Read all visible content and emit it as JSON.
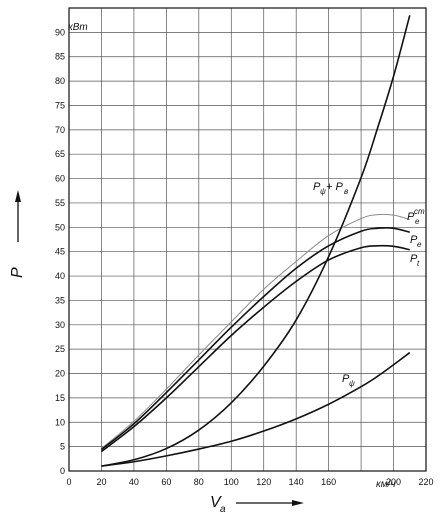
{
  "chart_data": {
    "type": "line",
    "title": "",
    "xlabel": "V",
    "xlabel_sub": "a",
    "ylabel": "P",
    "y_unit": "кВт",
    "x_unit": "км/ч",
    "xlim": [
      0,
      220
    ],
    "ylim": [
      0,
      95
    ],
    "x_ticks": [
      0,
      20,
      40,
      60,
      80,
      100,
      120,
      140,
      160,
      180,
      200,
      220
    ],
    "x_tick_labels": [
      "0",
      "20",
      "40",
      "60",
      "80",
      "100",
      "120",
      "140",
      "160",
      "",
      "200",
      "220"
    ],
    "y_ticks": [
      0,
      5,
      10,
      15,
      20,
      25,
      30,
      35,
      40,
      45,
      50,
      55,
      60,
      65,
      70,
      75,
      80,
      85,
      90
    ],
    "grid": true,
    "legend": "none",
    "series": [
      {
        "name": "P^ст_e",
        "color": "#8a8a8a",
        "x": [
          20,
          40,
          60,
          80,
          100,
          120,
          140,
          160,
          180,
          190,
          200,
          210
        ],
        "values": [
          4.6,
          10.2,
          16.8,
          23.8,
          30.6,
          37.3,
          43.0,
          48.3,
          51.8,
          52.6,
          52.5,
          51.6
        ]
      },
      {
        "name": "P_e",
        "color": "#111111",
        "x": [
          20,
          40,
          60,
          80,
          100,
          120,
          140,
          160,
          180,
          190,
          200,
          210
        ],
        "values": [
          4.4,
          9.7,
          16.1,
          22.8,
          29.5,
          35.8,
          41.6,
          46.2,
          49.2,
          49.8,
          49.8,
          49.0
        ]
      },
      {
        "name": "P_t",
        "color": "#111111",
        "x": [
          20,
          40,
          60,
          80,
          100,
          120,
          140,
          160,
          180,
          190,
          200,
          210
        ],
        "values": [
          4.0,
          9.1,
          15.0,
          21.4,
          27.8,
          33.6,
          38.9,
          43.3,
          45.8,
          46.2,
          46.1,
          45.4
        ]
      },
      {
        "name": "P_ψ + P_в",
        "color": "#111111",
        "x": [
          20,
          40,
          60,
          80,
          100,
          120,
          140,
          160,
          180,
          190,
          200,
          210
        ],
        "values": [
          1.0,
          2.3,
          4.6,
          8.4,
          14.0,
          21.5,
          31.0,
          44.0,
          60.2,
          70.2,
          81.0,
          93.5
        ]
      },
      {
        "name": "P_ψ",
        "color": "#111111",
        "x": [
          20,
          40,
          60,
          80,
          100,
          120,
          140,
          160,
          180,
          190,
          200,
          210
        ],
        "values": [
          1.0,
          1.9,
          3.1,
          4.5,
          6.1,
          8.2,
          10.7,
          13.7,
          17.3,
          19.4,
          21.8,
          24.3
        ]
      }
    ],
    "annotations": {
      "sum_label_main": "P",
      "sum_label_sub1": "ψ",
      "sum_label_plus": "+ P",
      "sum_label_sub2": "в",
      "pst_main": "P",
      "pst_sup": "ст",
      "pst_sub": "e",
      "pe_main": "P",
      "pe_sub": "e",
      "pt_main": "P",
      "pt_sub": "t",
      "ppsi_main": "P",
      "ppsi_sub": "ψ"
    }
  }
}
